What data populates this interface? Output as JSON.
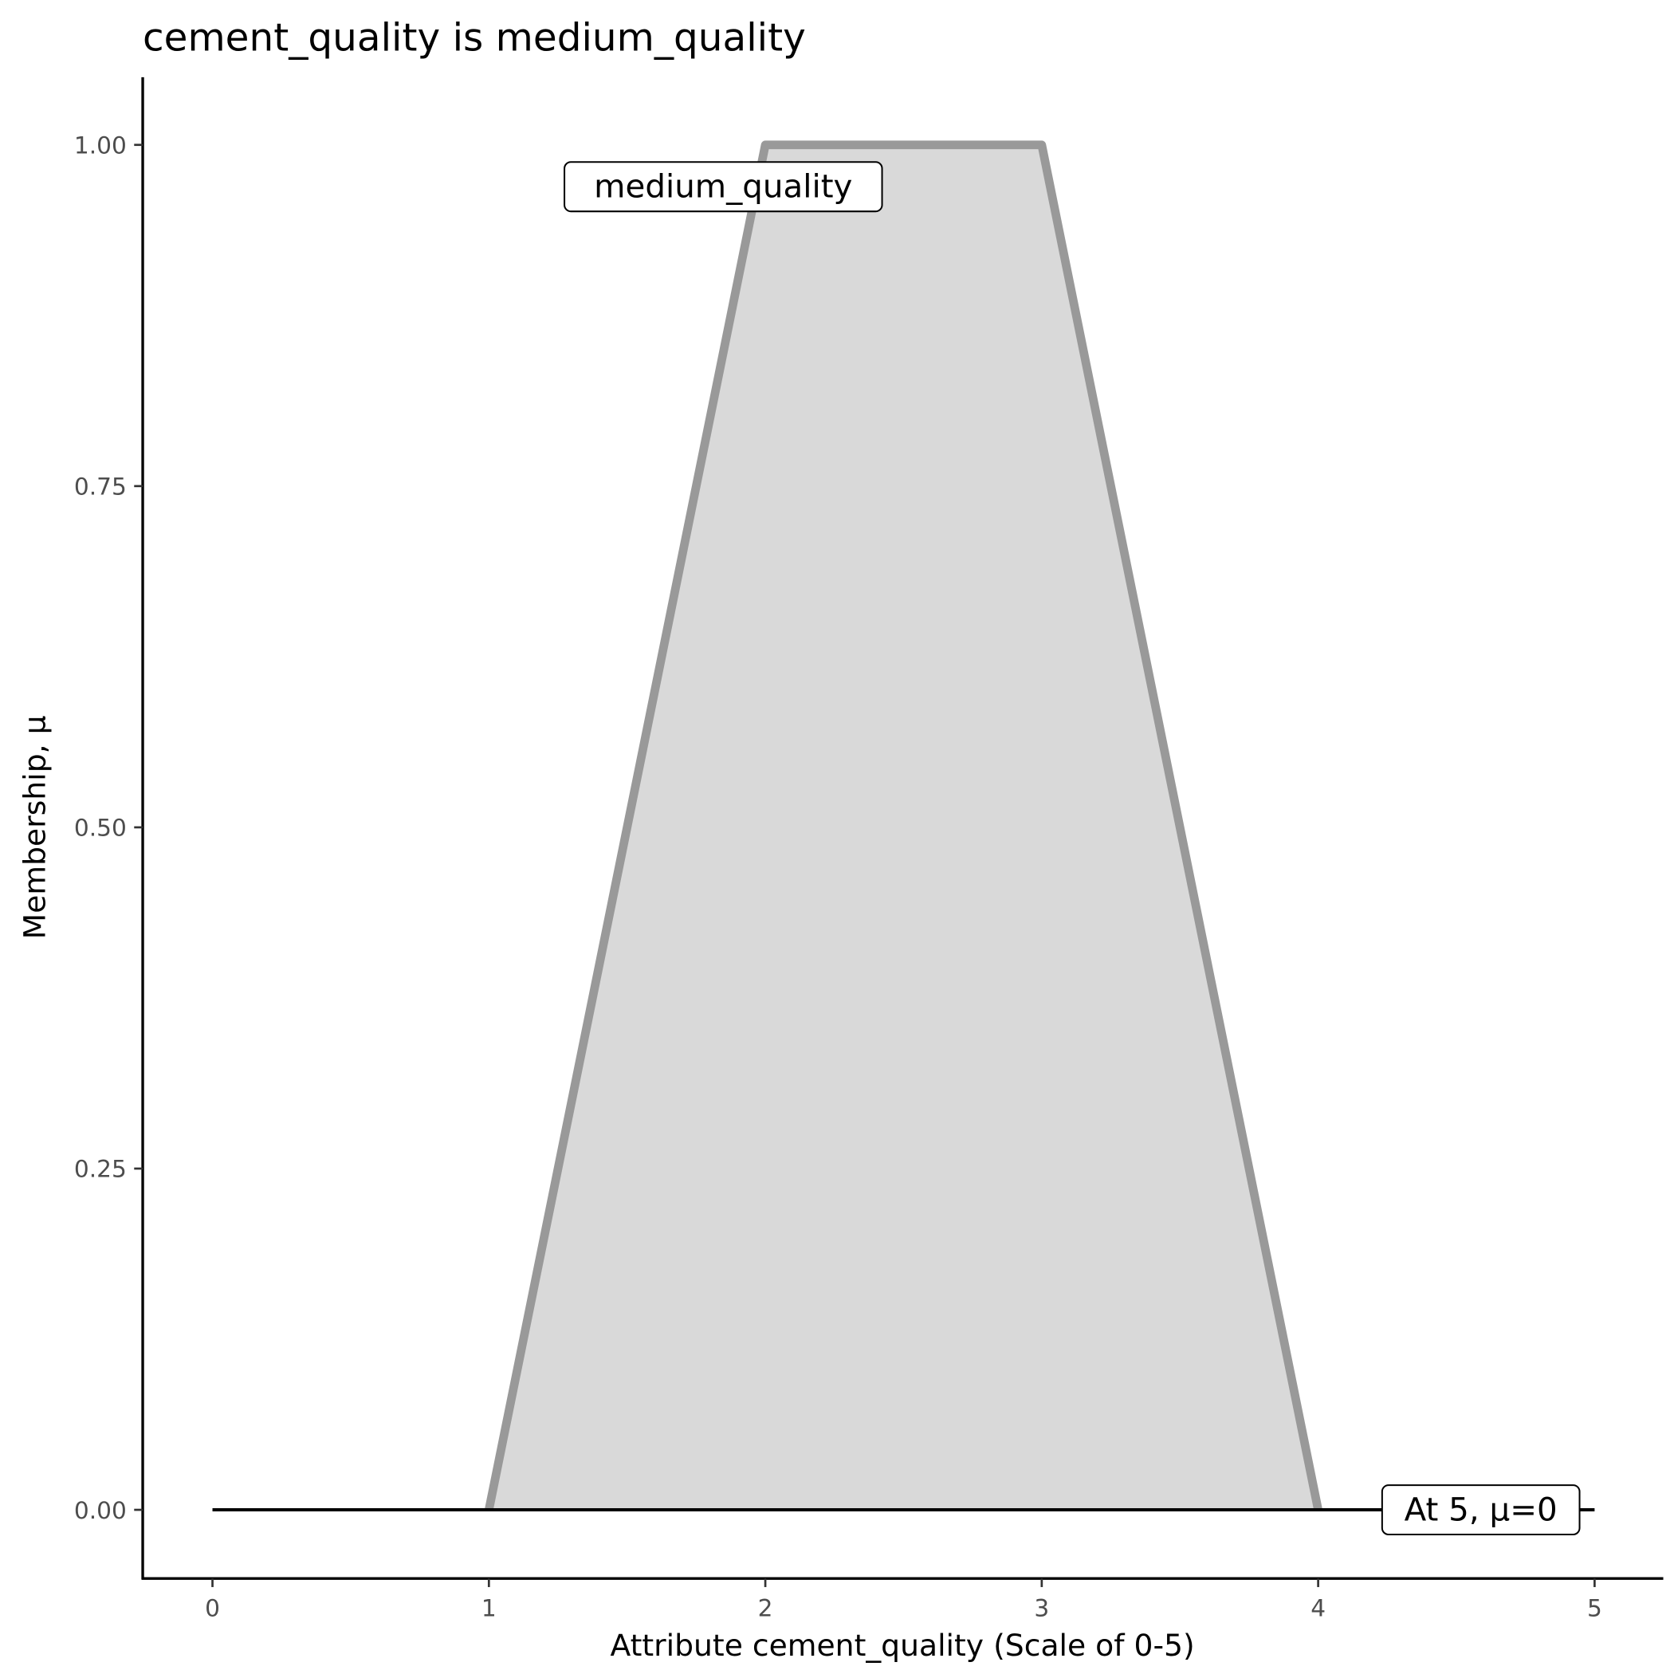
{
  "chart_data": {
    "type": "area",
    "title": "cement_quality is medium_quality",
    "xlabel": "Attribute cement_quality (Scale of 0-5)",
    "ylabel": "Membership, μ",
    "xlim": [
      -0.25,
      5.25
    ],
    "ylim": [
      -0.05,
      1.05
    ],
    "xticks": [
      0,
      1,
      2,
      3,
      4,
      5
    ],
    "xtick_labels": [
      "0",
      "1",
      "2",
      "3",
      "4",
      "5"
    ],
    "yticks": [
      0,
      0.25,
      0.5,
      0.75,
      1
    ],
    "ytick_labels": [
      "0.00",
      "0.25",
      "0.50",
      "0.75",
      "1.00"
    ],
    "grid": false,
    "series": [
      {
        "x": [
          1,
          2,
          3,
          4
        ],
        "y": [
          0,
          1,
          1,
          0
        ],
        "fill": "#d9d9d9",
        "stroke": "#999999"
      }
    ],
    "hline": {
      "x": [
        0,
        5
      ],
      "y": 0,
      "color": "#000000"
    },
    "annotations": [
      {
        "text": "medium_quality",
        "x": 1.85,
        "y": 0.97
      },
      {
        "text": "At 5, μ=0",
        "x": 4.6,
        "y": 0
      }
    ]
  }
}
